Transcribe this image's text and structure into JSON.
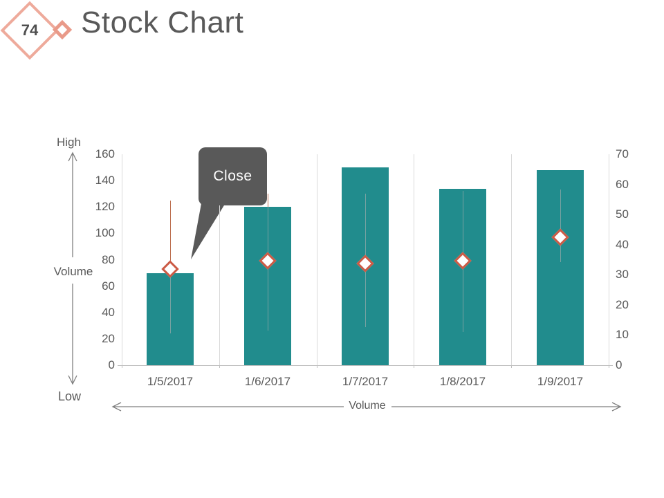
{
  "slide": {
    "badge_number": "74",
    "title": "Stock Chart"
  },
  "annotations": {
    "high_label": "High",
    "low_label": "Low",
    "volume_left_label": "Volume",
    "volume_bottom_label": "Volume",
    "close_callout": "Close"
  },
  "chart_data": {
    "type": "bar",
    "subtype": "volume-high-low-close stock chart",
    "title": "Stock Chart",
    "categories": [
      "1/5/2017",
      "1/6/2017",
      "1/7/2017",
      "1/8/2017",
      "1/9/2017"
    ],
    "series": [
      {
        "name": "Volume (bars)",
        "type": "bar",
        "axis": "left",
        "values": [
          70,
          120,
          150,
          134,
          148
        ]
      },
      {
        "name": "High",
        "type": "range-top",
        "axis": "left",
        "values": [
          125,
          130,
          130,
          132,
          133
        ]
      },
      {
        "name": "Low",
        "type": "range-bottom",
        "axis": "left",
        "values": [
          24,
          26,
          29,
          25,
          78
        ]
      },
      {
        "name": "Close",
        "type": "diamond-marker",
        "axis": "left",
        "values": [
          73,
          79,
          77,
          79,
          97
        ]
      }
    ],
    "left_axis": {
      "range": [
        0,
        160
      ],
      "ticks": [
        0,
        20,
        40,
        60,
        80,
        100,
        120,
        140,
        160
      ]
    },
    "right_axis": {
      "range": [
        0,
        70
      ],
      "ticks": [
        0,
        10,
        20,
        30,
        40,
        50,
        60,
        70
      ]
    },
    "grid": "vertical-only",
    "legend": "none",
    "colors": {
      "bar": "#218c8d",
      "marker_border": "#cb5a45",
      "marker_fill": "#ffffff",
      "hl_line_outside": "#bc6e4e",
      "hl_line_inside": "#77a1a1",
      "gridline": "#d9d9d9",
      "axis_text": "#595959",
      "callout_bg": "#595959",
      "callout_text": "#ffffff",
      "arrow": "#7f7f7f",
      "accent_badge": "#eeaa9b",
      "title_text": "#595959"
    }
  }
}
